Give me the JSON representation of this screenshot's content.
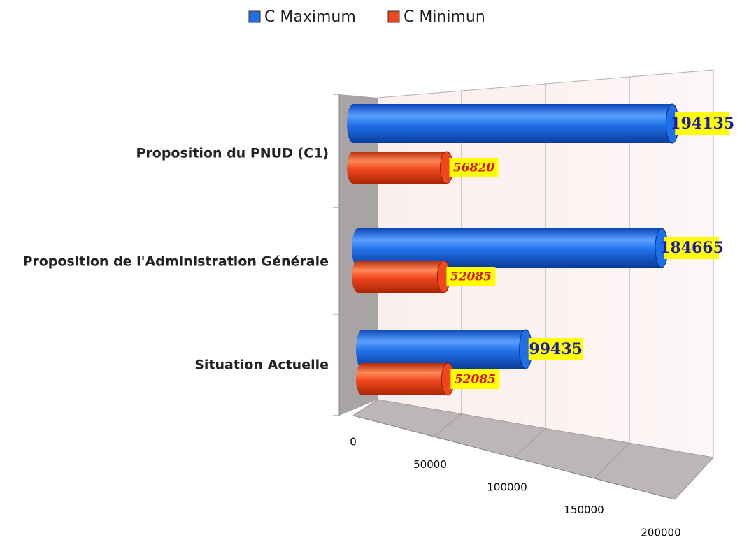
{
  "chart_data": {
    "type": "bar3d",
    "orientation": "horizontal",
    "categories": [
      "Proposition du PNUD (C1)",
      "Proposition de l'Administration Générale",
      "Situation Actuelle"
    ],
    "series": [
      {
        "name": "C Maximum",
        "color": "#1f6fe8",
        "values": [
          194135,
          184665,
          99435
        ]
      },
      {
        "name": "C Minimun",
        "color": "#f0461c",
        "values": [
          56820,
          52085,
          52085
        ]
      }
    ],
    "xlim": [
      0,
      200000
    ],
    "xticks": [
      0,
      50000,
      100000,
      150000,
      200000
    ],
    "grid": true,
    "legend": "top"
  }
}
